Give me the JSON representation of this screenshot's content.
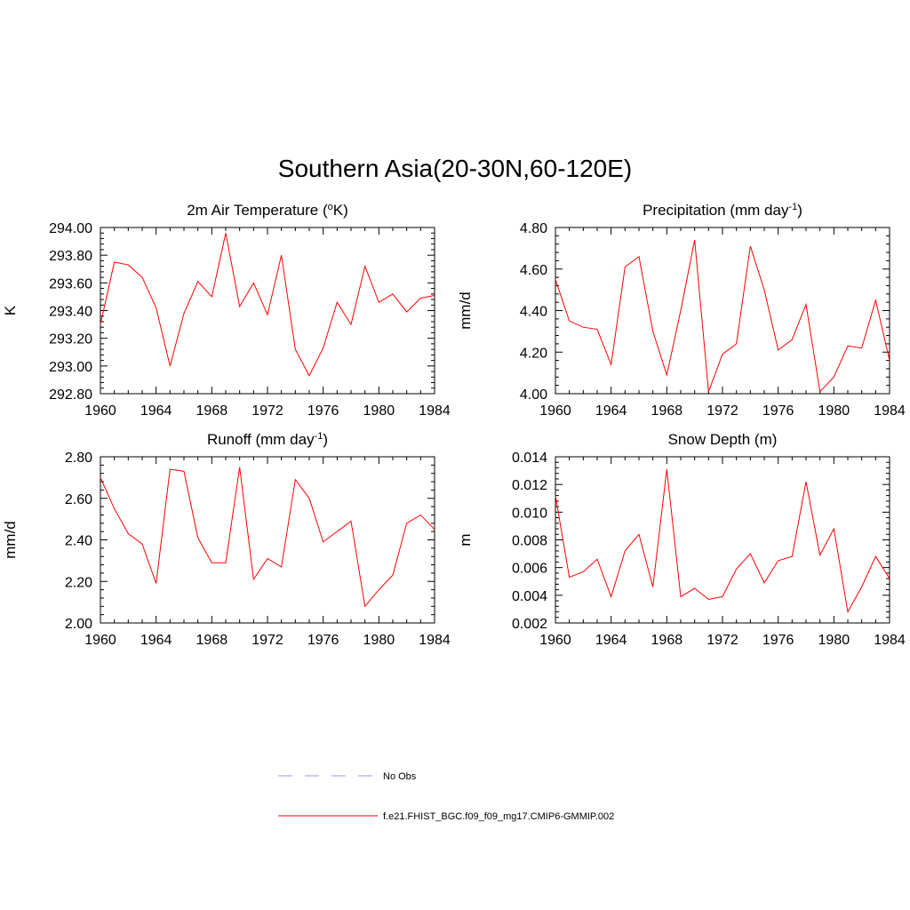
{
  "title": "Southern Asia(20-30N,60-120E)",
  "colors": {
    "model": "#ff0000",
    "obs": "#9999ee",
    "axis": "#000000"
  },
  "legend": {
    "obs_label": "No Obs",
    "model_label": "f.e21.FHIST_BGC.f09_f09_mg17.CMIP6-GMMIP.002"
  },
  "chart_data": [
    {
      "type": "line",
      "title": "2m Air Temperature (",
      "title_sup": "o",
      "title_tail": "K)",
      "ylabel": "K",
      "xlim": [
        1960,
        1984
      ],
      "ylim": [
        292.8,
        294.0
      ],
      "xticks": [
        1960,
        1964,
        1968,
        1972,
        1976,
        1980,
        1984
      ],
      "yticks": [
        292.8,
        293.0,
        293.2,
        293.4,
        293.6,
        293.8,
        294.0
      ],
      "ytick_labels": [
        "292.80",
        "293.00",
        "293.20",
        "293.40",
        "293.60",
        "293.80",
        "294.00"
      ],
      "x": [
        1960,
        1961,
        1962,
        1963,
        1964,
        1965,
        1966,
        1967,
        1968,
        1969,
        1970,
        1971,
        1972,
        1973,
        1974,
        1975,
        1976,
        1977,
        1978,
        1979,
        1980,
        1981,
        1982,
        1983,
        1984
      ],
      "series": [
        {
          "name": "f.e21.FHIST_BGC.f09_f09_mg17.CMIP6-GMMIP.002",
          "values": [
            293.3,
            293.75,
            293.73,
            293.64,
            293.42,
            293.0,
            293.38,
            293.61,
            293.5,
            293.96,
            293.43,
            293.6,
            293.37,
            293.8,
            293.12,
            292.93,
            293.13,
            293.46,
            293.3,
            293.72,
            293.46,
            293.52,
            293.39,
            293.49,
            293.51
          ]
        }
      ]
    },
    {
      "type": "line",
      "title": "Precipitation (mm day",
      "title_sup": "-1",
      "title_tail": ")",
      "ylabel": "mm/d",
      "xlim": [
        1960,
        1984
      ],
      "ylim": [
        4.0,
        4.8
      ],
      "xticks": [
        1960,
        1964,
        1968,
        1972,
        1976,
        1980,
        1984
      ],
      "yticks": [
        4.0,
        4.2,
        4.4,
        4.6,
        4.8
      ],
      "ytick_labels": [
        "4.00",
        "4.20",
        "4.40",
        "4.60",
        "4.80"
      ],
      "x": [
        1960,
        1961,
        1962,
        1963,
        1964,
        1965,
        1966,
        1967,
        1968,
        1969,
        1970,
        1971,
        1972,
        1973,
        1974,
        1975,
        1976,
        1977,
        1978,
        1979,
        1980,
        1981,
        1982,
        1983,
        1984
      ],
      "series": [
        {
          "name": "f.e21.FHIST_BGC.f09_f09_mg17.CMIP6-GMMIP.002",
          "values": [
            4.55,
            4.35,
            4.32,
            4.31,
            4.14,
            4.61,
            4.66,
            4.3,
            4.09,
            4.4,
            4.74,
            4.01,
            4.19,
            4.24,
            4.71,
            4.5,
            4.21,
            4.26,
            4.43,
            4.01,
            4.08,
            4.23,
            4.22,
            4.45,
            4.16
          ]
        }
      ]
    },
    {
      "type": "line",
      "title": "Runoff (mm day",
      "title_sup": "-1",
      "title_tail": ")",
      "ylabel": "mm/d",
      "xlim": [
        1960,
        1984
      ],
      "ylim": [
        2.0,
        2.8
      ],
      "xticks": [
        1960,
        1964,
        1968,
        1972,
        1976,
        1980,
        1984
      ],
      "yticks": [
        2.0,
        2.2,
        2.4,
        2.6,
        2.8
      ],
      "ytick_labels": [
        "2.00",
        "2.20",
        "2.40",
        "2.60",
        "2.80"
      ],
      "x": [
        1960,
        1961,
        1962,
        1963,
        1964,
        1965,
        1966,
        1967,
        1968,
        1969,
        1970,
        1971,
        1972,
        1973,
        1974,
        1975,
        1976,
        1977,
        1978,
        1979,
        1980,
        1981,
        1982,
        1983,
        1984
      ],
      "series": [
        {
          "name": "f.e21.FHIST_BGC.f09_f09_mg17.CMIP6-GMMIP.002",
          "values": [
            2.7,
            2.55,
            2.43,
            2.38,
            2.19,
            2.74,
            2.73,
            2.41,
            2.29,
            2.29,
            2.75,
            2.21,
            2.31,
            2.27,
            2.69,
            2.6,
            2.39,
            2.44,
            2.49,
            2.08,
            2.16,
            2.23,
            2.48,
            2.52,
            2.45
          ]
        }
      ]
    },
    {
      "type": "line",
      "title": "Snow Depth (m)",
      "title_sup": "",
      "title_tail": "",
      "ylabel": "m",
      "xlim": [
        1960,
        1984
      ],
      "ylim": [
        0.002,
        0.014
      ],
      "xticks": [
        1960,
        1964,
        1968,
        1972,
        1976,
        1980,
        1984
      ],
      "yticks": [
        0.002,
        0.004,
        0.006,
        0.008,
        0.01,
        0.012,
        0.014
      ],
      "ytick_labels": [
        "0.002",
        "0.004",
        "0.006",
        "0.008",
        "0.010",
        "0.012",
        "0.014"
      ],
      "x": [
        1960,
        1961,
        1962,
        1963,
        1964,
        1965,
        1966,
        1967,
        1968,
        1969,
        1970,
        1971,
        1972,
        1973,
        1974,
        1975,
        1976,
        1977,
        1978,
        1979,
        1980,
        1981,
        1982,
        1983,
        1984
      ],
      "series": [
        {
          "name": "f.e21.FHIST_BGC.f09_f09_mg17.CMIP6-GMMIP.002",
          "values": [
            0.0112,
            0.0053,
            0.0057,
            0.0066,
            0.0039,
            0.0072,
            0.0084,
            0.0046,
            0.0131,
            0.0039,
            0.0045,
            0.0037,
            0.0039,
            0.0059,
            0.007,
            0.0049,
            0.0065,
            0.0068,
            0.0122,
            0.0069,
            0.0088,
            0.0028,
            0.0046,
            0.0068,
            0.0052
          ]
        }
      ]
    }
  ]
}
